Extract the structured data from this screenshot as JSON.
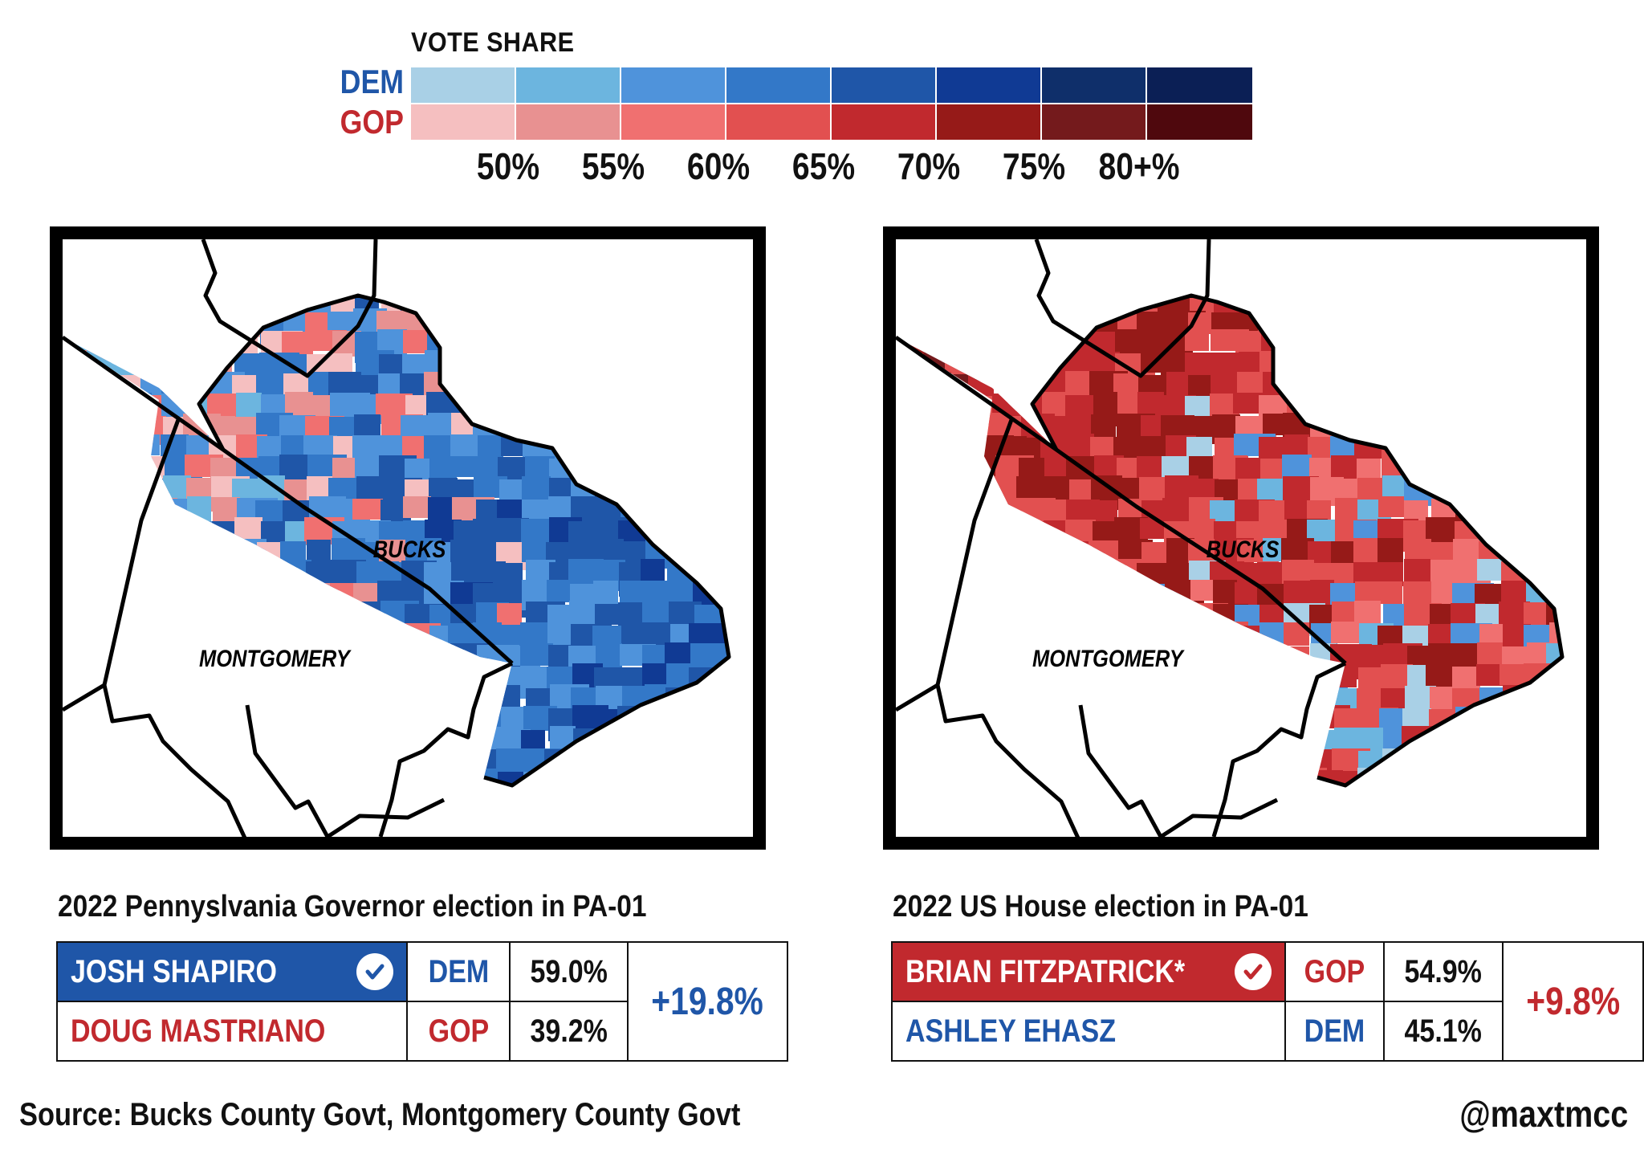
{
  "legend": {
    "title": "VOTE SHARE",
    "dem_label": "DEM",
    "gop_label": "GOP",
    "dem_colors": [
      "#a9d0e6",
      "#6cb5df",
      "#4f93db",
      "#3378c8",
      "#1f56a8",
      "#103a94",
      "#0f2f6a",
      "#0b1f55"
    ],
    "gop_colors": [
      "#f5bfc0",
      "#e89191",
      "#f07070",
      "#e25050",
      "#c1292e",
      "#961a18",
      "#741a1c",
      "#4f080d"
    ],
    "ticks": [
      "50%",
      "55%",
      "60%",
      "65%",
      "70%",
      "75%",
      "80+%"
    ]
  },
  "colors": {
    "dem": "#1f56a8",
    "gop": "#c1292e",
    "frame": "#000000"
  },
  "maps": [
    {
      "bucks_label": "BUCKS",
      "montgomery_label": "MONTGOMERY",
      "dominant": "dem"
    },
    {
      "bucks_label": "BUCKS",
      "montgomery_label": "MONTGOMERY",
      "dominant": "gop"
    }
  ],
  "governor": {
    "title": "2022 Pennyslvania Governor election in PA-01",
    "winner": {
      "name": "JOSH SHAPIRO",
      "party": "DEM",
      "pct": "59.0%"
    },
    "loser": {
      "name": "DOUG MASTRIANO",
      "party": "GOP",
      "pct": "39.2%"
    },
    "margin": "+19.8%",
    "winner_icon": "check-circle-icon"
  },
  "house": {
    "title": "2022 US House election in PA-01",
    "winner": {
      "name": "BRIAN FITZPATRICK*",
      "party": "GOP",
      "pct": "54.9%"
    },
    "loser": {
      "name": "ASHLEY EHASZ",
      "party": "DEM",
      "pct": "45.1%"
    },
    "margin": "+9.8%",
    "winner_icon": "check-circle-icon"
  },
  "footer": {
    "source": "Source: Bucks County Govt, Montgomery County Govt",
    "credit": "@maxtmcc"
  }
}
